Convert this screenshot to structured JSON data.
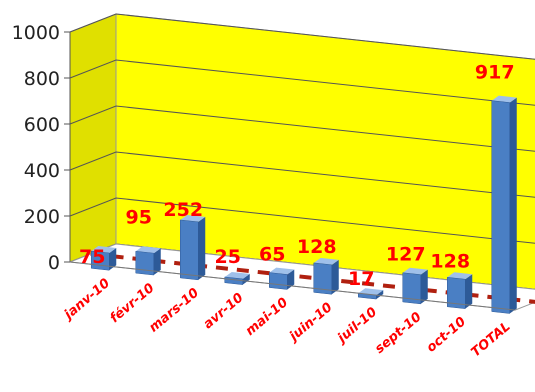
{
  "chart_data": {
    "type": "bar",
    "categories": [
      "janv-10",
      "févr-10",
      "mars-10",
      "avr-10",
      "mai-10",
      "juin-10",
      "juil-10",
      "sept-10",
      "oct-10",
      "TOTAL"
    ],
    "values": [
      75,
      95,
      252,
      25,
      65,
      128,
      17,
      127,
      128,
      917
    ],
    "data_labels": [
      "75",
      "95",
      "252",
      "25",
      "65",
      "128",
      "17",
      "127",
      "128",
      "917"
    ],
    "y_ticks": [
      "0",
      "200",
      "400",
      "600",
      "800",
      "1000"
    ],
    "ylim": [
      0,
      1000
    ],
    "title": "",
    "xlabel": "",
    "ylabel": "",
    "grid": true,
    "style": "3d",
    "colors": {
      "bar": "#4a7fc4",
      "bar_side": "#2d5a98",
      "bar_top": "#9fc0ea",
      "wall_back": "#ffff00",
      "wall_side": "#e0e000",
      "floor_line": "#b02010",
      "label": "#ff0000"
    }
  }
}
